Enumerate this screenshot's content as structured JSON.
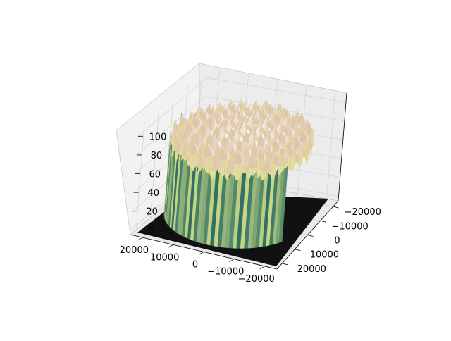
{
  "chart_data": {
    "type": "surface3d",
    "title": "",
    "xlabel": "",
    "ylabel": "",
    "zlabel": "",
    "x_ticks": [
      20000,
      10000,
      0,
      -10000,
      -20000
    ],
    "y_ticks": [
      -20000,
      -10000,
      0,
      10000,
      20000
    ],
    "z_ticks": [
      0,
      20,
      40,
      60,
      80,
      100
    ],
    "x_tick_labels": [
      "20000",
      "10000",
      "0",
      "−10000",
      "−20000"
    ],
    "y_tick_labels": [
      "−20000",
      "−10000",
      "0",
      "10000",
      "20000"
    ],
    "z_tick_labels": [
      "0",
      "20",
      "40",
      "60",
      "80",
      "100"
    ],
    "xlim": [
      -24000,
      24000
    ],
    "ylim": [
      -24000,
      24000
    ],
    "zlim": [
      -5,
      110
    ],
    "grid": true,
    "surface": {
      "shape": "cylindrical bumpy surface",
      "radius": 22000,
      "height_range": [
        55,
        100
      ],
      "bumps_per_axis": 9,
      "floor_value": 0,
      "colormap": "terrain"
    },
    "colors": {
      "pane": "#f2f2f2",
      "pane_side": "#e9e9e9",
      "grid": "#d4d4d4",
      "floor": "#111111",
      "wall_dark": "#2f6f66",
      "wall_light": "#c9d883"
    }
  }
}
